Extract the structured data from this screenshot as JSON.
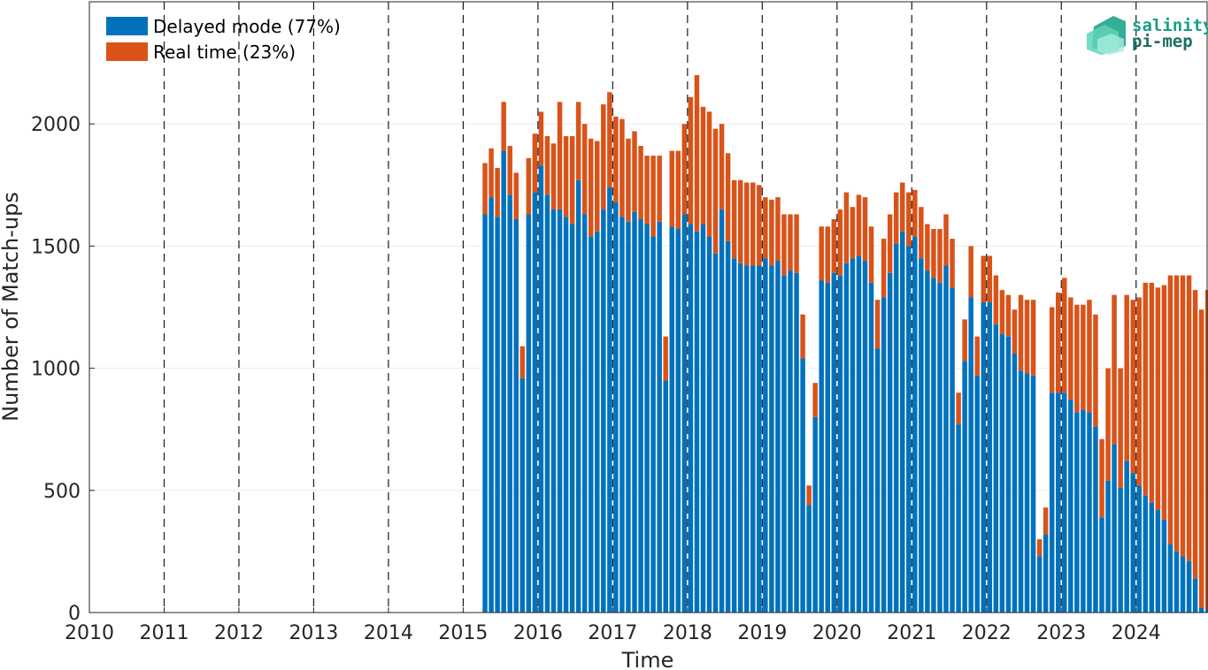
{
  "chart_data": {
    "type": "bar",
    "stacked": true,
    "xlabel": "Time",
    "ylabel": "Number of Match-ups",
    "xlim": [
      2010.0,
      2024.95
    ],
    "ylim": [
      0,
      2500
    ],
    "x_ticks": [
      "2010",
      "2011",
      "2012",
      "2013",
      "2014",
      "2015",
      "2016",
      "2017",
      "2018",
      "2019",
      "2020",
      "2021",
      "2022",
      "2023",
      "2024"
    ],
    "y_ticks": [
      0,
      500,
      1000,
      1500,
      2000
    ],
    "year_dividers": [
      "2011",
      "2012",
      "2013",
      "2014",
      "2015",
      "2016",
      "2017",
      "2018",
      "2019",
      "2020",
      "2021",
      "2022",
      "2023",
      "2024"
    ],
    "grid": "horizontal",
    "legend_position": "top-left",
    "x_start": "2015-04",
    "x_end": "2024-11",
    "series": [
      {
        "name": "Delayed mode (77%)",
        "color": "#0072bd",
        "values": [
          1630,
          1700,
          1620,
          1890,
          1710,
          1610,
          960,
          1630,
          1720,
          1830,
          1710,
          1650,
          1650,
          1620,
          1590,
          1770,
          1630,
          1540,
          1560,
          1650,
          1740,
          1680,
          1620,
          1600,
          1640,
          1610,
          1590,
          1540,
          1600,
          950,
          1580,
          1570,
          1630,
          1590,
          1560,
          1590,
          1540,
          1470,
          1650,
          1520,
          1450,
          1430,
          1420,
          1420,
          1420,
          1450,
          1420,
          1440,
          1380,
          1400,
          1390,
          1040,
          440,
          800,
          1360,
          1350,
          1390,
          1380,
          1430,
          1450,
          1460,
          1440,
          1350,
          1080,
          1290,
          1390,
          1510,
          1560,
          1500,
          1540,
          1450,
          1400,
          1370,
          1350,
          1420,
          1330,
          770,
          1030,
          1290,
          970,
          1270,
          1270,
          1180,
          1140,
          1130,
          1060,
          990,
          980,
          970,
          230,
          320,
          900,
          900,
          900,
          870,
          820,
          830,
          820,
          760,
          390,
          540,
          690,
          510,
          620,
          570,
          520,
          480,
          450,
          420,
          380,
          280,
          250,
          230,
          210,
          140,
          20,
          10
        ]
      },
      {
        "name": "Real time (23%)",
        "color": "#d95319",
        "values": [
          210,
          200,
          200,
          200,
          200,
          190,
          130,
          230,
          240,
          220,
          240,
          270,
          440,
          330,
          360,
          320,
          370,
          400,
          370,
          430,
          390,
          350,
          400,
          340,
          330,
          300,
          280,
          330,
          270,
          180,
          310,
          320,
          370,
          520,
          640,
          480,
          510,
          510,
          350,
          360,
          320,
          340,
          340,
          340,
          330,
          250,
          270,
          260,
          250,
          230,
          240,
          180,
          80,
          140,
          220,
          230,
          220,
          270,
          290,
          210,
          250,
          260,
          230,
          200,
          240,
          240,
          210,
          200,
          220,
          190,
          210,
          190,
          200,
          220,
          210,
          200,
          130,
          170,
          210,
          160,
          190,
          190,
          200,
          180,
          170,
          180,
          310,
          300,
          310,
          70,
          110,
          350,
          410,
          470,
          420,
          440,
          430,
          460,
          460,
          320,
          460,
          610,
          490,
          680,
          710,
          770,
          870,
          900,
          910,
          960,
          1100,
          1130,
          1150,
          1170,
          1180,
          1220,
          1310
        ]
      }
    ]
  },
  "legend": {
    "items": [
      {
        "label": "Delayed mode (77%)",
        "color": "#0072bd"
      },
      {
        "label": "Real time (23%)",
        "color": "#d95319"
      }
    ]
  },
  "logo": {
    "line1": "salinity",
    "line2": "pi-mep"
  }
}
